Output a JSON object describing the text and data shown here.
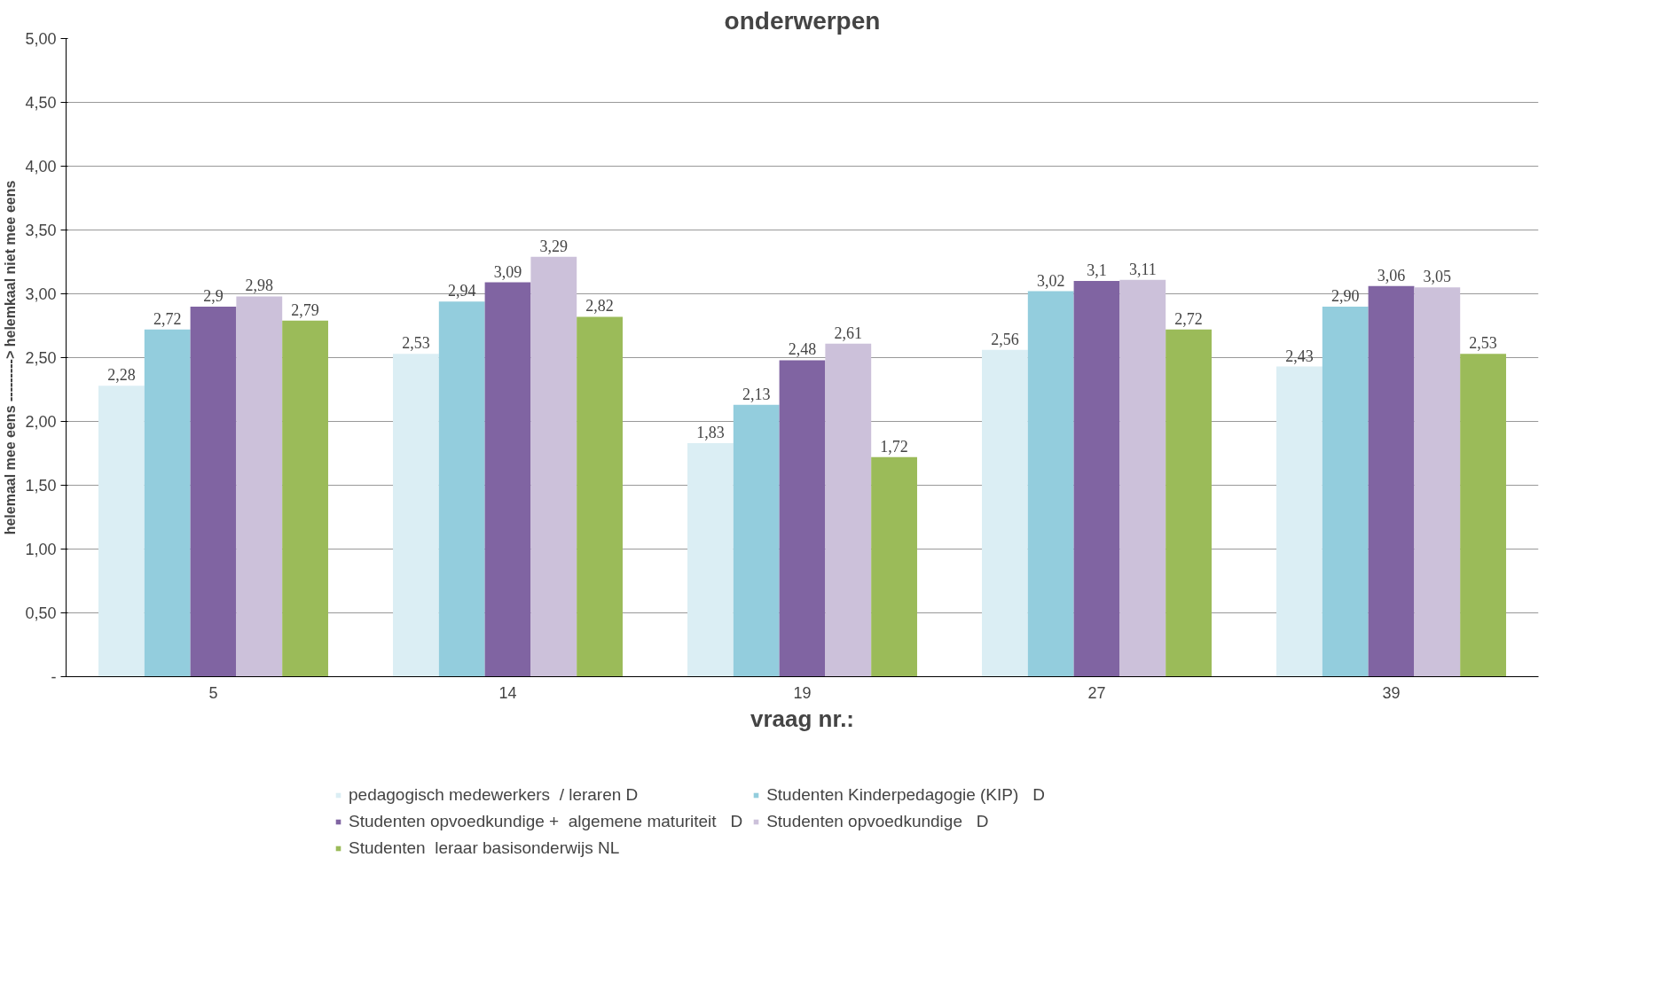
{
  "chart_data": {
    "type": "bar",
    "title": "onderwerpen",
    "xlabel": "vraag nr.:",
    "ylabel": "helemaal mee eens ---------> helemkaal niet mee eens",
    "categories": [
      "5",
      "14",
      "19",
      "27",
      "39"
    ],
    "series": [
      {
        "name": "pedagogisch medewerkers  / leraren D",
        "color": "#dbeef4",
        "values": [
          2.28,
          2.53,
          1.83,
          2.56,
          2.43
        ],
        "value_labels": [
          "2,28",
          "2,53",
          "1,83",
          "2,56",
          "2,43"
        ]
      },
      {
        "name": "Studenten Kinderpedagogie (KIP)   D",
        "color": "#93cddd",
        "values": [
          2.72,
          2.94,
          2.13,
          3.02,
          2.9
        ],
        "value_labels": [
          "2,72",
          "2,94",
          "2,13",
          "3,02",
          "2,90"
        ]
      },
      {
        "name": "Studenten opvoedkundige +  algemene maturiteit   D",
        "color": "#8064a2",
        "values": [
          2.9,
          3.09,
          2.48,
          3.1,
          3.06
        ],
        "value_labels": [
          "2,9",
          "3,09",
          "2,48",
          "3,1",
          "3,06"
        ]
      },
      {
        "name": "Studenten opvoedkundige   D",
        "color": "#ccc1da",
        "values": [
          2.98,
          3.29,
          2.61,
          3.11,
          3.05
        ],
        "value_labels": [
          "2,98",
          "3,29",
          "2,61",
          "3,11",
          "3,05"
        ]
      },
      {
        "name": "Studenten  leraar basisonderwijs NL",
        "color": "#9bbb59",
        "values": [
          2.79,
          2.82,
          1.72,
          2.72,
          2.53
        ],
        "value_labels": [
          "2,79",
          "2,82",
          "1,72",
          "2,72",
          "2,53"
        ]
      }
    ],
    "ylim": [
      0,
      5
    ],
    "yticks": [
      {
        "value": 0,
        "label": "-"
      },
      {
        "value": 0.5,
        "label": "0,50"
      },
      {
        "value": 1,
        "label": "1,00"
      },
      {
        "value": 1.5,
        "label": "1,50"
      },
      {
        "value": 2,
        "label": "2,00"
      },
      {
        "value": 2.5,
        "label": "2,50"
      },
      {
        "value": 3,
        "label": "3,00"
      },
      {
        "value": 3.5,
        "label": "3,50"
      },
      {
        "value": 4,
        "label": "4,00"
      },
      {
        "value": 4.5,
        "label": "4,50"
      },
      {
        "value": 5,
        "label": "5,00"
      }
    ],
    "grid": "y",
    "legend": "bottom"
  }
}
